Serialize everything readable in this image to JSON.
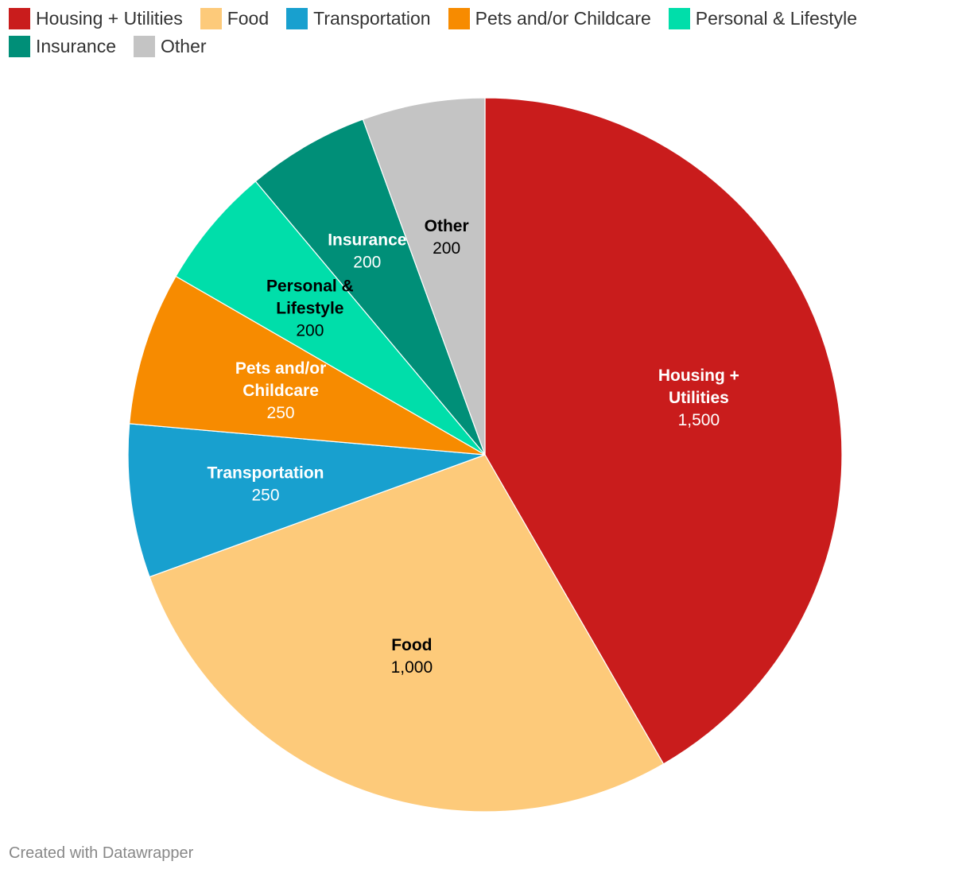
{
  "chart_data": {
    "type": "pie",
    "categories": [
      "Housing + Utilities",
      "Food",
      "Transportation",
      "Pets and/or Childcare",
      "Personal & Lifestyle",
      "Insurance",
      "Other"
    ],
    "values": [
      1500,
      1000,
      250,
      250,
      200,
      200,
      200
    ],
    "value_labels": [
      "1,500",
      "1,000",
      "250",
      "250",
      "200",
      "200",
      "200"
    ],
    "slice_label_lines": [
      [
        "Housing +",
        "Utilities"
      ],
      [
        "Food"
      ],
      [
        "Transportation"
      ],
      [
        "Pets and/or",
        "Childcare"
      ],
      [
        "Personal &",
        "Lifestyle"
      ],
      [
        "Insurance"
      ],
      [
        "Other"
      ]
    ],
    "colors": [
      "#c91c1c",
      "#fdca7a",
      "#18a0cf",
      "#f78b00",
      "#00deaa",
      "#008f78",
      "#c4c4c4"
    ],
    "label_colors": [
      "#ffffff",
      "#000000",
      "#ffffff",
      "#ffffff",
      "#000000",
      "#ffffff",
      "#000000"
    ],
    "legend_placement": "top-left",
    "start_angle": "12 o'clock",
    "direction": "clockwise"
  },
  "legend": {
    "items": [
      {
        "label": "Housing + Utilities",
        "color": "#c91c1c"
      },
      {
        "label": "Food",
        "color": "#fdca7a"
      },
      {
        "label": "Transportation",
        "color": "#18a0cf"
      },
      {
        "label": "Pets and/or Childcare",
        "color": "#f78b00"
      },
      {
        "label": "Personal & Lifestyle",
        "color": "#00deaa"
      },
      {
        "label": "Insurance",
        "color": "#008f78"
      },
      {
        "label": "Other",
        "color": "#c4c4c4"
      }
    ]
  },
  "footer": {
    "credit": "Created with Datawrapper"
  }
}
